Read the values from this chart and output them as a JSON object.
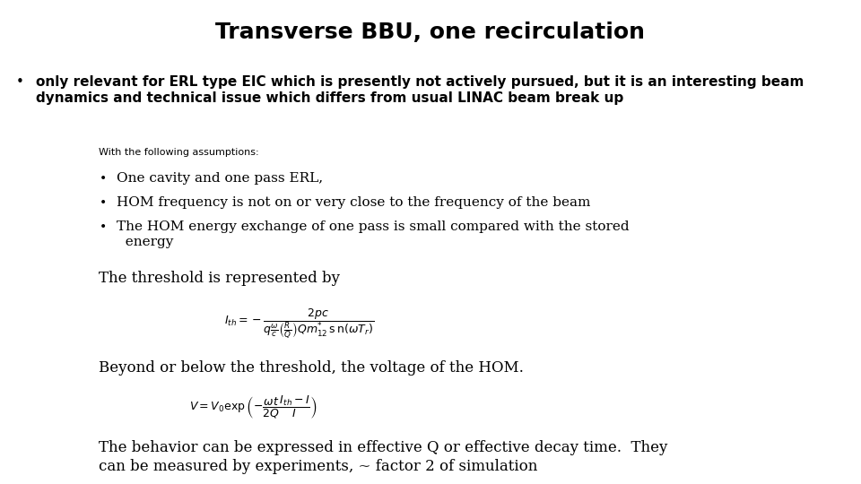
{
  "title": "Transverse BBU, one recirculation",
  "title_fontsize": 18,
  "title_fontweight": "bold",
  "title_fontfamily": "sans-serif",
  "bg_color": "#ffffff",
  "text_color": "#000000",
  "bullet1": "only relevant for ERL type EIC which is presently not actively pursued, but it is an interesting beam\ndynamics and technical issue which differs from usual LINAC beam break up",
  "bullet1_fontsize": 11,
  "small_label": "With the following assumptions:",
  "small_label_fontsize": 8,
  "sub_bullet_fontsize": 11,
  "sub_bullets": [
    "One cavity and one pass ERL,",
    "HOM frequency is not on or very close to the frequency of the beam",
    "The HOM energy exchange of one pass is small compared with the stored\n  energy"
  ],
  "threshold_text": "The threshold is represented by",
  "threshold_fontsize": 12,
  "formula1": "$I_{th} = -\\dfrac{2pc}{q\\frac{\\omega}{c}\\left(\\frac{R}{Q}\\right)Qm^{*}_{12}\\, \\mathrm{s\\, n}(\\omega T_r)}$",
  "formula1_fontsize": 9,
  "beyond_text": "Beyond or below the threshold, the voltage of the HOM.",
  "beyond_fontsize": 12,
  "formula2": "$V = V_0 \\exp\\left(-\\dfrac{\\omega t}{2Q}\\dfrac{I_{th} - I}{I}\\right)$",
  "formula2_fontsize": 9,
  "behavior_text": "The behavior can be expressed in effective Q or effective decay time.  They\ncan be measured by experiments, ~ factor 2 of simulation",
  "behavior_fontsize": 12
}
